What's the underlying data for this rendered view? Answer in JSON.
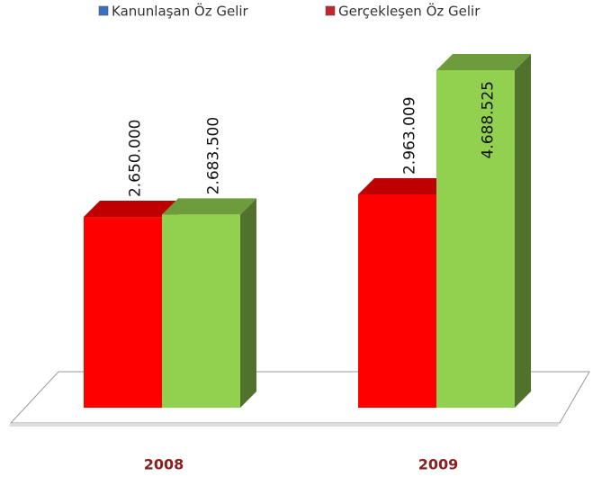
{
  "chart_data": {
    "type": "bar3d",
    "categories": [
      "2008",
      "2009"
    ],
    "series": [
      {
        "name": "Kanunlaşan Öz Gelir",
        "color": "#ff0000",
        "legend_color": "#3a6fc4",
        "values": [
          2650000,
          2963009
        ],
        "value_labels": [
          "2.650.000",
          "2.963.009"
        ]
      },
      {
        "name": "Gerçekleşen Öz Gelir",
        "color": "#92d050",
        "legend_color": "#c0262c",
        "values": [
          2683500,
          4688525
        ],
        "value_labels": [
          "2.683.500",
          "4.688.525"
        ]
      }
    ]
  }
}
